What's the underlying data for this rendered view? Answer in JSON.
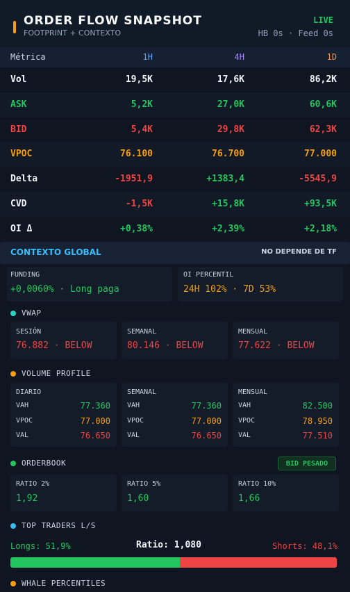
{
  "header": {
    "title": "ORDER FLOW SNAPSHOT",
    "subtitle": "FOOTPRINT + CONTEXTO",
    "status": "LIVE",
    "meta": "HB 0s · Feed 0s"
  },
  "table": {
    "columns": [
      "Métrica",
      "1H",
      "4H",
      "1D"
    ],
    "rows": [
      [
        "Vol",
        "19,5K",
        "17,6K",
        "86,2K"
      ],
      [
        "ASK",
        "5,2K",
        "27,0K",
        "60,6K"
      ],
      [
        "BID",
        "5,4K",
        "29,8K",
        "62,3K"
      ],
      [
        "VPOC",
        "76.100",
        "76.700",
        "77.000"
      ],
      [
        "Delta",
        "-1951,9",
        "+1383,4",
        "-5545,9"
      ],
      [
        "CVD",
        "-1,5K",
        "+15,8K",
        "+93,5K"
      ],
      [
        "OI Δ",
        "+0,38%",
        "+2,39%",
        "+2,18%"
      ]
    ]
  },
  "global": {
    "title": "CONTEXTO GLOBAL",
    "note": "NO DEPENDE DE TF",
    "funding": {
      "label": "FUNDING",
      "value": "+0,0060% · Long paga"
    },
    "oi": {
      "label": "OI PERCENTIL",
      "value": "24H 102% · 7D 53%"
    }
  },
  "vwap": {
    "title": "VWAP",
    "items": [
      {
        "label": "SESIÓN",
        "value": "76.882 · BELOW"
      },
      {
        "label": "SEMANAL",
        "value": "80.146 · BELOW"
      },
      {
        "label": "MENSUAL",
        "value": "77.622 · BELOW"
      }
    ]
  },
  "volume_profile": {
    "title": "VOLUME PROFILE",
    "columns": [
      {
        "label": "DIARIO",
        "rows": [
          [
            "VAH",
            "77.360"
          ],
          [
            "VPOC",
            "77.000"
          ],
          [
            "VAL",
            "76.650"
          ]
        ]
      },
      {
        "label": "SEMANAL",
        "rows": [
          [
            "VAH",
            "77.360"
          ],
          [
            "VPOC",
            "77.000"
          ],
          [
            "VAL",
            "76.650"
          ]
        ]
      },
      {
        "label": "MENSUAL",
        "rows": [
          [
            "VAH",
            "82.500"
          ],
          [
            "VPOC",
            "78.950"
          ],
          [
            "VAL",
            "77.510"
          ]
        ]
      }
    ]
  },
  "orderbook": {
    "title": "ORDERBOOK",
    "badge": "BID PESADO",
    "items": [
      {
        "label": "RATIO 2%",
        "value": "1,92"
      },
      {
        "label": "RATIO 5%",
        "value": "1,60"
      },
      {
        "label": "RATIO 10%",
        "value": "1,66"
      }
    ]
  },
  "top_traders": {
    "title": "TOP TRADERS L/S",
    "longs": "Longs: 51,9%",
    "ratio": "Ratio: 1,080",
    "shorts": "Shorts: 48,1%",
    "bar": {
      "longs": 51.9,
      "shorts": 48.1
    }
  },
  "whale": {
    "title": "WHALE PERCENTILES"
  }
}
